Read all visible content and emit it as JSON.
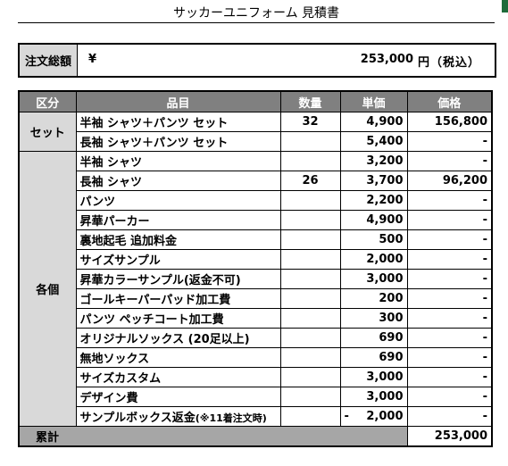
{
  "title": "サッカーユニフォーム 見積書",
  "total": {
    "label": "注文総額",
    "currency": "¥",
    "amount": "253,000",
    "unit": "円（税込）"
  },
  "table": {
    "headers": [
      "区分",
      "品目",
      "数量",
      "単価",
      "価格"
    ],
    "groups": [
      {
        "category": "セット",
        "rows": [
          {
            "item": "半袖 シャツ＋パンツ セット",
            "qty": "32",
            "unit": "4,900",
            "price": "156,800"
          },
          {
            "item": "長袖 シャツ＋パンツ セット",
            "qty": "",
            "unit": "5,400",
            "price": "-"
          }
        ]
      },
      {
        "category": "各個",
        "rows": [
          {
            "item": "半袖 シャツ",
            "qty": "",
            "unit": "3,200",
            "price": "-"
          },
          {
            "item": "長袖 シャツ",
            "qty": "26",
            "unit": "3,700",
            "price": "96,200"
          },
          {
            "item": "パンツ",
            "qty": "",
            "unit": "2,200",
            "price": "-"
          },
          {
            "item": "昇華パーカー",
            "qty": "",
            "unit": "4,900",
            "price": "-"
          },
          {
            "item": "裏地起毛 追加料金",
            "qty": "",
            "unit": "500",
            "price": "-"
          },
          {
            "item": "サイズサンプル",
            "qty": "",
            "unit": "2,000",
            "price": "-"
          },
          {
            "item": "昇華カラーサンプル(返金不可)",
            "qty": "",
            "unit": "3,000",
            "price": "-"
          },
          {
            "item": "ゴールキーパーパッド加工費",
            "qty": "",
            "unit": "200",
            "price": "-"
          },
          {
            "item": "パンツ ペッチコート加工費",
            "qty": "",
            "unit": "300",
            "price": "-"
          },
          {
            "item": "オリジナルソックス (20足以上)",
            "qty": "",
            "unit": "690",
            "price": "-"
          },
          {
            "item": "無地ソックス",
            "qty": "",
            "unit": "690",
            "price": "-"
          },
          {
            "item": "サイズカスタム",
            "qty": "",
            "unit": "3,000",
            "price": "-"
          },
          {
            "item": "デザイン費",
            "qty": "",
            "unit": "3,000",
            "price": "-"
          }
        ]
      }
    ],
    "refund_row": {
      "item_main": "サンプルボックス返金",
      "item_note": "(※11着注文時)",
      "unit_sign": "-",
      "unit": "2,000",
      "price": "-"
    },
    "footer": {
      "label": "累計",
      "total": "253,000"
    }
  }
}
